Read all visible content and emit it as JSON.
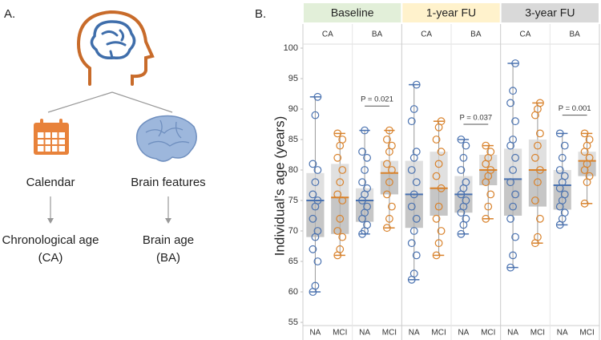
{
  "panel_a": {
    "label": "A.",
    "left_title": "Calendar",
    "right_title": "Brain features",
    "left_result": "Chronological age",
    "left_abbr": "(CA)",
    "right_result": "Brain age",
    "right_abbr": "(BA)"
  },
  "chart_data": {
    "type": "box",
    "label": "B.",
    "ylabel": "Individual’s age (years)",
    "ylim": [
      55,
      100
    ],
    "yticks": [
      55,
      60,
      65,
      70,
      75,
      80,
      85,
      90,
      95,
      100
    ],
    "groups": [
      {
        "name": "Baseline",
        "color": "#e2efd9",
        "subgroups": [
          {
            "name": "CA",
            "boxes": [
              {
                "name": "NA",
                "color": "#4a72b0",
                "min": 60,
                "q1": 69,
                "median": 75,
                "q3": 79.5,
                "max": 92,
                "points": [
                  60,
                  61,
                  65,
                  67,
                  69,
                  70,
                  72,
                  74,
                  75,
                  76,
                  78,
                  80,
                  81,
                  89,
                  92
                ]
              },
              {
                "name": "MCI",
                "color": "#d9822b",
                "min": 66,
                "q1": 69.5,
                "median": 75.5,
                "q3": 81,
                "max": 86,
                "points": [
                  66,
                  67,
                  69,
                  70,
                  72,
                  75,
                  76,
                  78,
                  80,
                  82,
                  84,
                  85,
                  86
                ]
              }
            ]
          },
          {
            "name": "BA",
            "p_label": "P = 0.021",
            "p_y": 90.5,
            "boxes": [
              {
                "name": "NA",
                "color": "#4a72b0",
                "min": 69.5,
                "q1": 71.5,
                "median": 75,
                "q3": 77,
                "max": 86.5,
                "points": [
                  69.5,
                  70,
                  71,
                  72,
                  73,
                  74,
                  75,
                  76,
                  77,
                  78,
                  80,
                  82,
                  83,
                  86.5
                ]
              },
              {
                "name": "MCI",
                "color": "#d9822b",
                "min": 70.5,
                "q1": 76,
                "median": 79.5,
                "q3": 81.5,
                "max": 86.5,
                "points": [
                  70.5,
                  72,
                  74,
                  76,
                  78,
                  80,
                  81,
                  83,
                  84,
                  85,
                  86.5
                ]
              }
            ]
          }
        ]
      },
      {
        "name": "1-year FU",
        "color": "#fff2cc",
        "subgroups": [
          {
            "name": "CA",
            "boxes": [
              {
                "name": "NA",
                "color": "#4a72b0",
                "min": 62,
                "q1": 70.5,
                "median": 76,
                "q3": 81.5,
                "max": 94,
                "points": [
                  62,
                  63,
                  66,
                  68,
                  70,
                  72,
                  74,
                  76,
                  78,
                  80,
                  82,
                  83,
                  88,
                  90,
                  94
                ]
              },
              {
                "name": "MCI",
                "color": "#d9822b",
                "min": 66,
                "q1": 72.5,
                "median": 77,
                "q3": 83,
                "max": 88,
                "points": [
                  66,
                  68,
                  70,
                  72,
                  74,
                  77,
                  79,
                  81,
                  83,
                  85,
                  87,
                  88
                ]
              }
            ]
          },
          {
            "name": "BA",
            "p_label": "P = 0.037",
            "p_y": 87.5,
            "boxes": [
              {
                "name": "NA",
                "color": "#4a72b0",
                "min": 69.5,
                "q1": 73,
                "median": 76,
                "q3": 79,
                "max": 85,
                "points": [
                  69.5,
                  71,
                  72,
                  73,
                  74,
                  75,
                  76,
                  77,
                  78,
                  80,
                  82,
                  84,
                  85
                ]
              },
              {
                "name": "MCI",
                "color": "#d9822b",
                "min": 72,
                "q1": 77.5,
                "median": 80,
                "q3": 82.5,
                "max": 84,
                "points": [
                  72,
                  74,
                  76,
                  78,
                  79,
                  80,
                  81,
                  82,
                  83,
                  84
                ]
              }
            ]
          }
        ]
      },
      {
        "name": "3-year FU",
        "color": "#d9d9d9",
        "subgroups": [
          {
            "name": "CA",
            "boxes": [
              {
                "name": "NA",
                "color": "#4a72b0",
                "min": 64,
                "q1": 72.5,
                "median": 78.5,
                "q3": 83.5,
                "max": 97.5,
                "points": [
                  64,
                  66,
                  69,
                  72,
                  74,
                  76,
                  78,
                  80,
                  82,
                  84,
                  85,
                  88,
                  91,
                  93,
                  97.5
                ]
              },
              {
                "name": "MCI",
                "color": "#d9822b",
                "min": 68,
                "q1": 74,
                "median": 80,
                "q3": 85,
                "max": 91,
                "points": [
                  68,
                  69,
                  72,
                  75,
                  78,
                  80,
                  82,
                  84,
                  86,
                  89,
                  90,
                  91
                ]
              }
            ]
          },
          {
            "name": "BA",
            "p_label": "P = 0.001",
            "p_y": 89,
            "boxes": [
              {
                "name": "NA",
                "color": "#4a72b0",
                "min": 71,
                "q1": 73.5,
                "median": 77.5,
                "q3": 80,
                "max": 86,
                "points": [
                  71,
                  72,
                  73,
                  74,
                  75,
                  76,
                  77,
                  78,
                  79,
                  80,
                  82,
                  84,
                  86
                ]
              },
              {
                "name": "MCI",
                "color": "#d9822b",
                "min": 74.5,
                "q1": 79,
                "median": 81.5,
                "q3": 83,
                "max": 86,
                "points": [
                  74.5,
                  78,
                  79,
                  80,
                  81,
                  82,
                  83,
                  84,
                  85,
                  86
                ]
              }
            ]
          }
        ]
      }
    ]
  }
}
